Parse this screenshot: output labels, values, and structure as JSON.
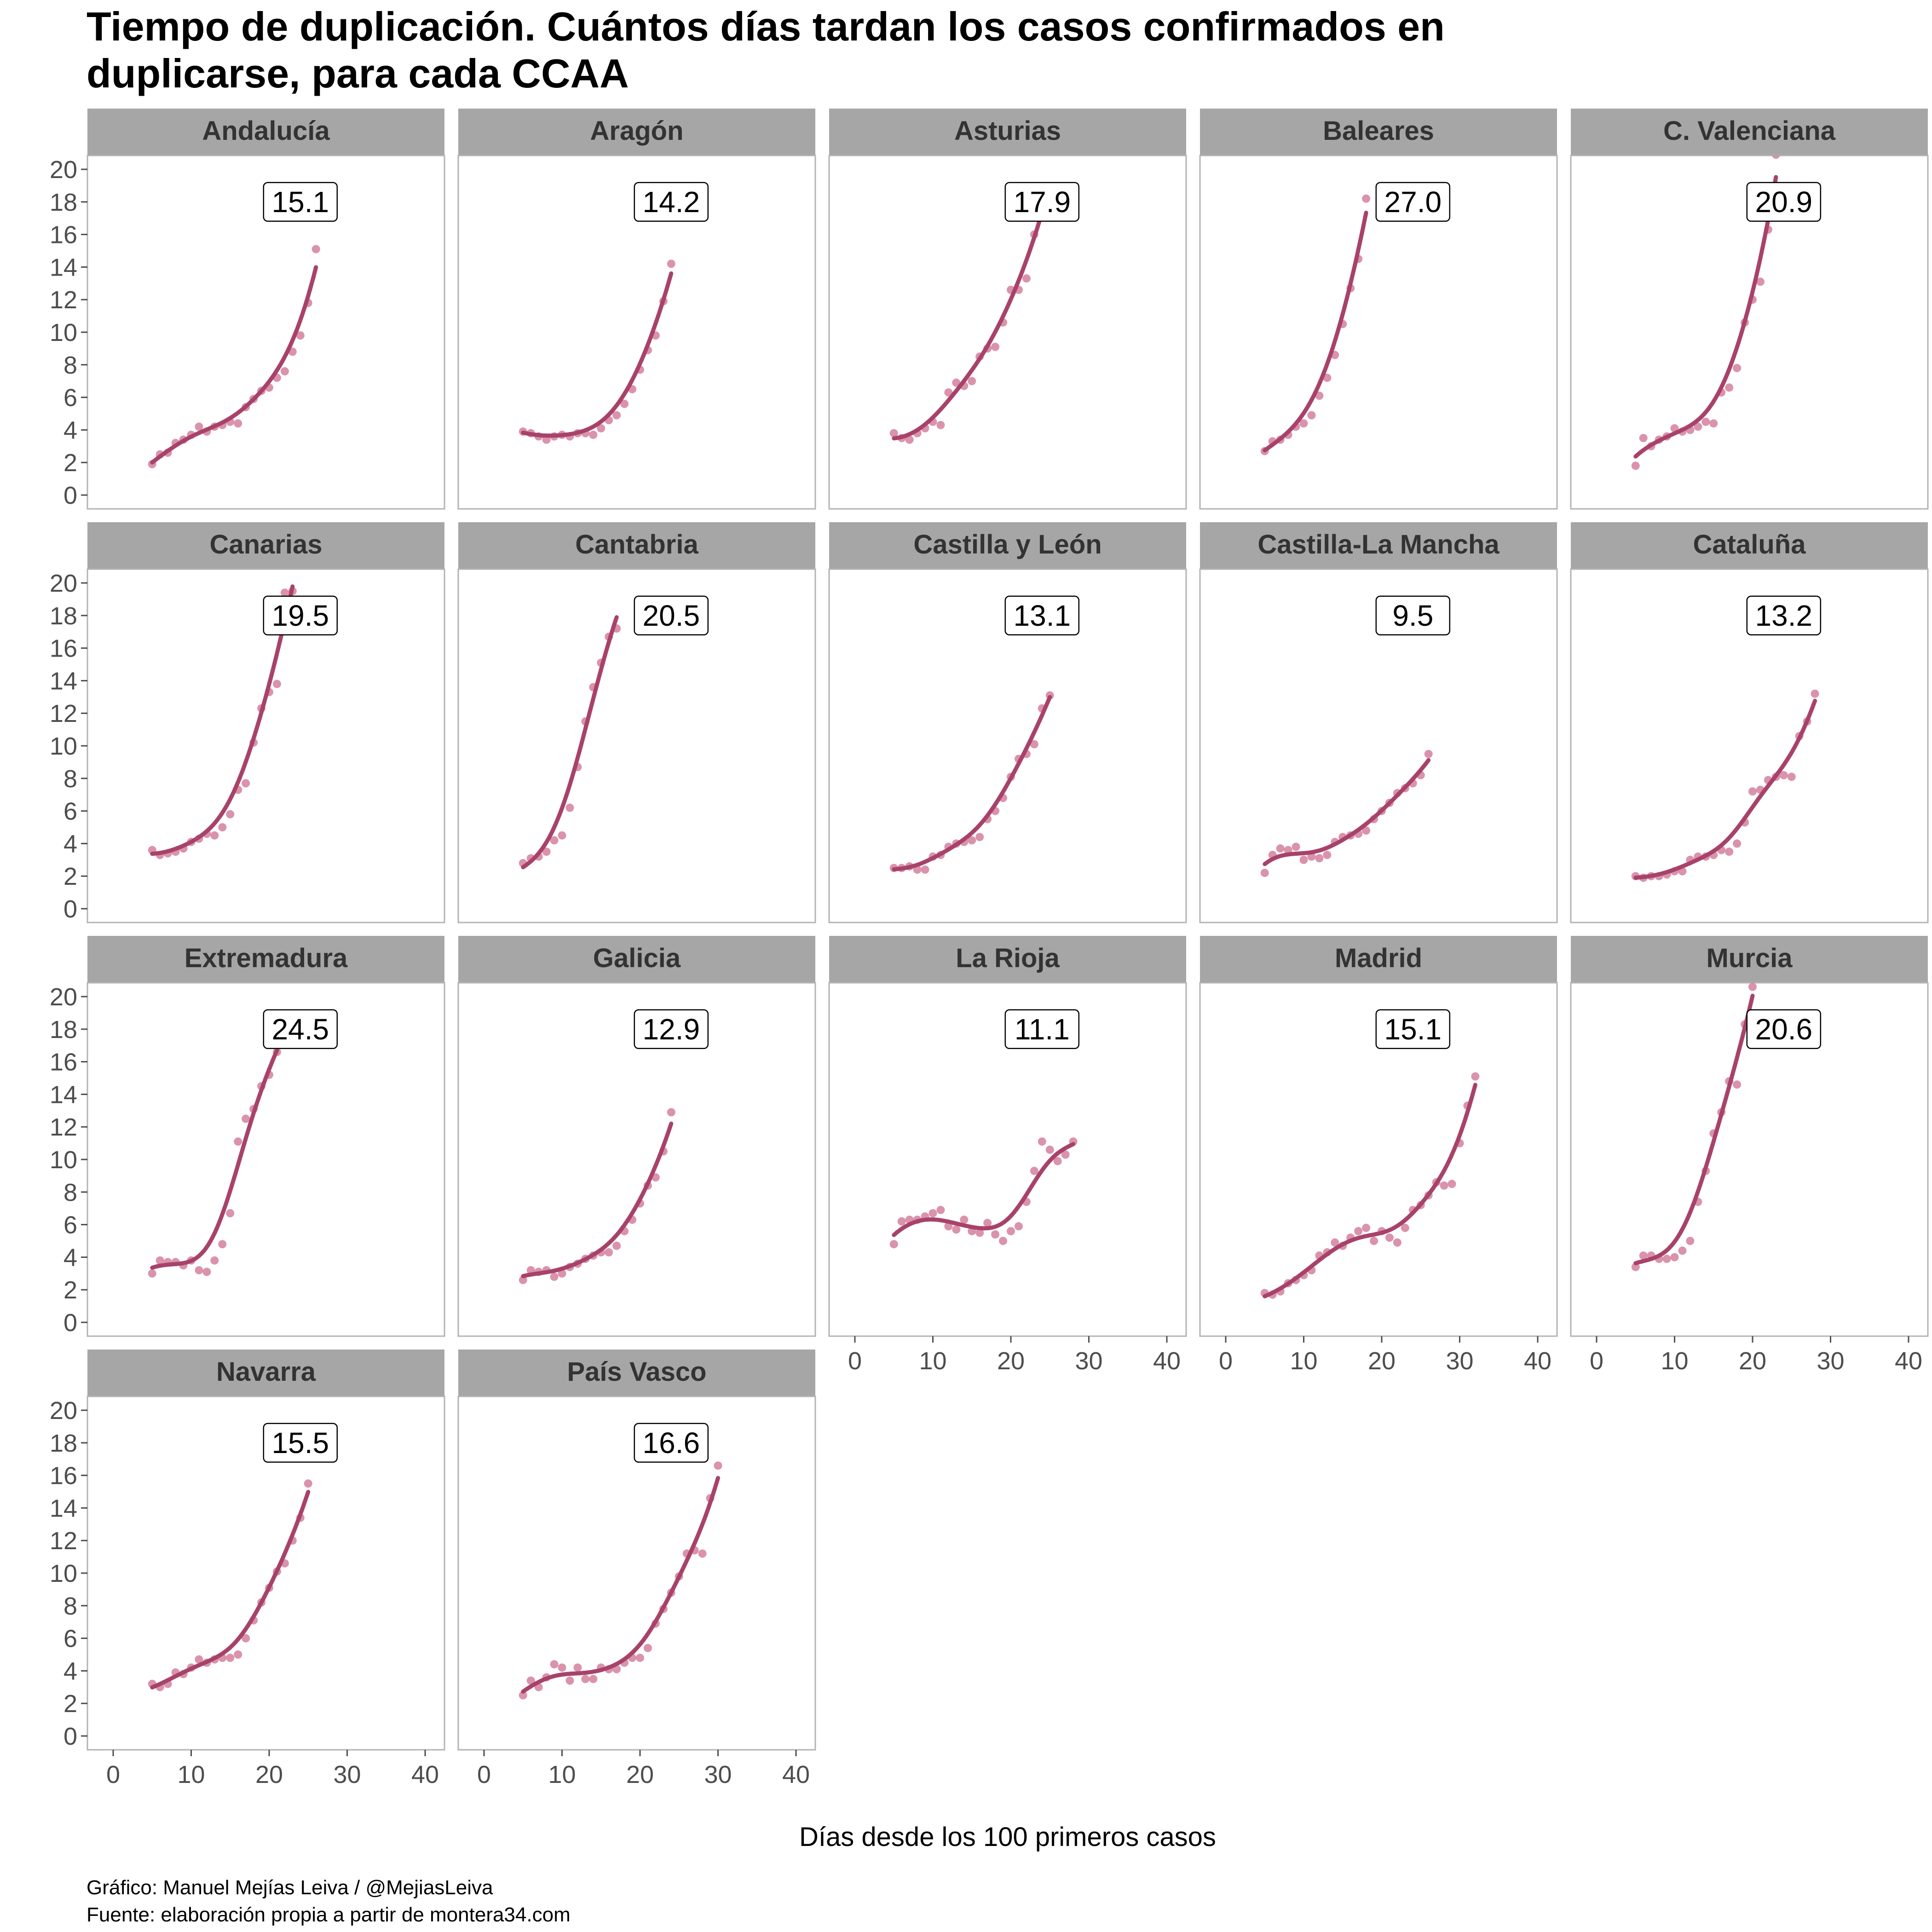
{
  "title_lines": [
    "Tiempo de duplicación. Cuántos días tardan los casos confirmados en",
    "duplicarse, para cada CCAA"
  ],
  "xlabel": "Días desde los 100 primeros casos",
  "caption_lines": [
    "Gráfico: Manuel Mejías Leiva / @MejiasLeiva",
    "Fuente: elaboración propia a partir de montera34.com"
  ],
  "colors": {
    "point": "#d3809c",
    "line": "#a8426a",
    "strip": "#a6a6a6",
    "strip_text": "#333333",
    "panel_border": "#b3b3b3"
  },
  "chart_data": {
    "type": "scatter",
    "facet": "small multiples, 5 columns, scatter points with smoothed trend line and value label per panel",
    "xlim": [
      0,
      40
    ],
    "ylim": [
      0,
      20
    ],
    "x_ticks": [
      0,
      10,
      20,
      30,
      40
    ],
    "y_ticks": [
      0,
      2,
      4,
      6,
      8,
      10,
      12,
      14,
      16,
      18,
      20
    ],
    "grid": false,
    "panels": [
      {
        "name": "Andalucía",
        "label": "15.1",
        "x": [
          5,
          6,
          7,
          8,
          9,
          10,
          11,
          12,
          13,
          14,
          15,
          16,
          17,
          18,
          19,
          20,
          21,
          22,
          23,
          24,
          25,
          26
        ],
        "y": [
          1.9,
          2.5,
          2.6,
          3.2,
          3.4,
          3.7,
          4.2,
          3.9,
          4.2,
          4.3,
          4.5,
          4.4,
          5.4,
          5.9,
          6.4,
          6.6,
          7.2,
          7.6,
          8.8,
          9.8,
          11.8,
          15.1
        ]
      },
      {
        "name": "Aragón",
        "label": "14.2",
        "x": [
          5,
          6,
          7,
          8,
          9,
          10,
          11,
          12,
          13,
          14,
          15,
          16,
          17,
          18,
          19,
          20,
          21,
          22,
          23,
          24
        ],
        "y": [
          3.9,
          3.8,
          3.6,
          3.4,
          3.6,
          3.7,
          3.6,
          3.8,
          3.8,
          3.7,
          4.1,
          4.6,
          4.9,
          5.6,
          6.5,
          7.7,
          8.9,
          9.8,
          11.9,
          14.2
        ]
      },
      {
        "name": "Asturias",
        "label": "17.9",
        "x": [
          5,
          6,
          7,
          8,
          9,
          10,
          11,
          12,
          13,
          14,
          15,
          16,
          17,
          18,
          19,
          20,
          21,
          22,
          23,
          24
        ],
        "y": [
          3.8,
          3.5,
          3.4,
          3.8,
          4.1,
          4.5,
          4.3,
          6.3,
          6.9,
          6.7,
          7.0,
          8.5,
          9.0,
          9.1,
          10.6,
          12.6,
          12.6,
          13.3,
          16.0,
          17.9
        ]
      },
      {
        "name": "Baleares",
        "label": "27.0",
        "x": [
          5,
          6,
          7,
          8,
          9,
          10,
          11,
          12,
          13,
          14,
          15,
          16,
          17,
          18
        ],
        "y": [
          2.7,
          3.3,
          3.4,
          3.7,
          4.2,
          4.4,
          4.9,
          6.1,
          7.2,
          8.6,
          10.5,
          12.7,
          14.5,
          18.2
        ]
      },
      {
        "name": "C. Valenciana",
        "label": "20.9",
        "x": [
          5,
          6,
          7,
          8,
          9,
          10,
          11,
          12,
          13,
          14,
          15,
          16,
          17,
          18,
          19,
          20,
          21,
          22,
          23
        ],
        "y": [
          1.8,
          3.5,
          3.0,
          3.4,
          3.6,
          4.1,
          3.9,
          4.0,
          4.2,
          4.5,
          4.4,
          6.3,
          6.6,
          7.8,
          10.6,
          12.0,
          13.1,
          16.3,
          20.9
        ]
      },
      {
        "name": "Canarias",
        "label": "19.5",
        "x": [
          5,
          6,
          7,
          8,
          9,
          10,
          11,
          12,
          13,
          14,
          15,
          16,
          17,
          18,
          19,
          20,
          21,
          22,
          23
        ],
        "y": [
          3.6,
          3.3,
          3.4,
          3.5,
          3.7,
          4.1,
          4.3,
          4.6,
          4.5,
          5.0,
          5.8,
          7.3,
          7.7,
          10.2,
          12.3,
          13.3,
          13.8,
          19.4,
          19.5
        ]
      },
      {
        "name": "Cantabria",
        "label": "20.5",
        "x": [
          5,
          6,
          7,
          8,
          9,
          10,
          11,
          12,
          13,
          14,
          15,
          16,
          17
        ],
        "y": [
          2.8,
          3.1,
          3.2,
          3.5,
          4.2,
          4.5,
          6.2,
          8.7,
          11.5,
          13.6,
          15.1,
          16.7,
          17.2
        ]
      },
      {
        "name": "Castilla y León",
        "label": "13.1",
        "x": [
          5,
          6,
          7,
          8,
          9,
          10,
          11,
          12,
          13,
          14,
          15,
          16,
          17,
          18,
          19,
          20,
          21,
          22,
          23,
          24,
          25
        ],
        "y": [
          2.5,
          2.5,
          2.6,
          2.4,
          2.4,
          3.2,
          3.3,
          3.8,
          4.0,
          4.1,
          4.2,
          4.4,
          5.5,
          6.0,
          6.8,
          8.1,
          9.2,
          9.5,
          10.1,
          12.3,
          13.1
        ]
      },
      {
        "name": "Castilla-La Mancha",
        "label": "9.5",
        "x": [
          5,
          6,
          7,
          8,
          9,
          10,
          11,
          12,
          13,
          14,
          15,
          16,
          17,
          18,
          19,
          20,
          21,
          22,
          23,
          24,
          25,
          26
        ],
        "y": [
          2.2,
          3.3,
          3.7,
          3.6,
          3.8,
          3.0,
          3.2,
          3.1,
          3.3,
          4.1,
          4.4,
          4.5,
          4.6,
          4.8,
          5.5,
          6.0,
          6.5,
          7.1,
          7.4,
          7.7,
          8.2,
          9.5
        ]
      },
      {
        "name": "Cataluña",
        "label": "13.2",
        "x": [
          5,
          6,
          7,
          8,
          9,
          10,
          11,
          12,
          13,
          14,
          15,
          16,
          17,
          18,
          19,
          20,
          21,
          22,
          23,
          24,
          25,
          26,
          27,
          28
        ],
        "y": [
          2.0,
          1.9,
          2.0,
          2.0,
          2.1,
          2.3,
          2.3,
          3.0,
          3.2,
          3.2,
          3.3,
          3.6,
          3.5,
          4.0,
          5.3,
          7.2,
          7.3,
          7.9,
          8.1,
          8.2,
          8.1,
          10.6,
          11.5,
          13.2
        ]
      },
      {
        "name": "Extremadura",
        "label": "24.5",
        "x": [
          5,
          6,
          7,
          8,
          9,
          10,
          11,
          12,
          13,
          14,
          15,
          16,
          17,
          18,
          19,
          20,
          21
        ],
        "y": [
          3.0,
          3.8,
          3.7,
          3.7,
          3.5,
          3.8,
          3.2,
          3.1,
          3.8,
          4.8,
          6.7,
          11.1,
          12.5,
          13.1,
          14.5,
          15.2,
          16.6
        ]
      },
      {
        "name": "Galicia",
        "label": "12.9",
        "x": [
          5,
          6,
          7,
          8,
          9,
          10,
          11,
          12,
          13,
          14,
          15,
          16,
          17,
          18,
          19,
          20,
          21,
          22,
          23,
          24
        ],
        "y": [
          2.6,
          3.2,
          3.1,
          3.2,
          2.8,
          3.0,
          3.4,
          3.6,
          3.9,
          4.1,
          4.3,
          4.3,
          4.7,
          5.6,
          6.3,
          7.3,
          8.4,
          8.9,
          10.5,
          12.9
        ]
      },
      {
        "name": "La Rioja",
        "label": "11.1",
        "x": [
          5,
          6,
          7,
          8,
          9,
          10,
          11,
          12,
          13,
          14,
          15,
          16,
          17,
          18,
          19,
          20,
          21,
          22,
          23,
          24,
          25,
          26,
          27,
          28
        ],
        "y": [
          4.8,
          6.2,
          6.3,
          6.3,
          6.5,
          6.7,
          6.9,
          5.9,
          5.7,
          6.3,
          5.6,
          5.5,
          6.1,
          5.4,
          5.0,
          5.6,
          5.9,
          7.4,
          9.3,
          11.1,
          10.6,
          9.9,
          10.3,
          11.1
        ]
      },
      {
        "name": "Madrid",
        "label": "15.1",
        "x": [
          5,
          6,
          7,
          8,
          9,
          10,
          11,
          12,
          13,
          14,
          15,
          16,
          17,
          18,
          19,
          20,
          21,
          22,
          23,
          24,
          25,
          26,
          27,
          28,
          29,
          30,
          31,
          32
        ],
        "y": [
          1.8,
          1.7,
          1.9,
          2.4,
          2.6,
          2.9,
          3.2,
          4.1,
          4.3,
          4.9,
          4.7,
          5.2,
          5.6,
          5.8,
          5.0,
          5.6,
          5.2,
          4.9,
          5.8,
          6.9,
          7.2,
          7.8,
          8.6,
          8.4,
          8.5,
          11.0,
          13.3,
          15.1
        ]
      },
      {
        "name": "Murcia",
        "label": "20.6",
        "x": [
          5,
          6,
          7,
          8,
          9,
          10,
          11,
          12,
          13,
          14,
          15,
          16,
          17,
          18,
          19,
          20
        ],
        "y": [
          3.4,
          4.1,
          4.1,
          3.9,
          3.9,
          4.0,
          4.4,
          5.0,
          7.4,
          9.3,
          11.6,
          12.9,
          14.8,
          14.6,
          18.3,
          20.6
        ]
      },
      {
        "name": "Navarra",
        "label": "15.5",
        "x": [
          5,
          6,
          7,
          8,
          9,
          10,
          11,
          12,
          13,
          14,
          15,
          16,
          17,
          18,
          19,
          20,
          21,
          22,
          23,
          24,
          25
        ],
        "y": [
          3.2,
          3.0,
          3.2,
          3.9,
          3.8,
          4.2,
          4.7,
          4.5,
          4.7,
          4.8,
          4.8,
          5.0,
          6.0,
          7.1,
          8.2,
          9.1,
          10.1,
          10.6,
          12.0,
          13.4,
          15.5
        ]
      },
      {
        "name": "País Vasco",
        "label": "16.6",
        "x": [
          5,
          6,
          7,
          8,
          9,
          10,
          11,
          12,
          13,
          14,
          15,
          16,
          17,
          18,
          19,
          20,
          21,
          22,
          23,
          24,
          25,
          26,
          27,
          28,
          29,
          30
        ],
        "y": [
          2.5,
          3.4,
          3.0,
          3.6,
          4.4,
          4.2,
          3.4,
          4.2,
          3.5,
          3.5,
          4.2,
          4.1,
          4.1,
          4.5,
          4.8,
          4.8,
          5.4,
          6.9,
          7.8,
          8.8,
          9.8,
          11.2,
          11.4,
          11.2,
          14.6,
          16.6
        ]
      }
    ]
  }
}
